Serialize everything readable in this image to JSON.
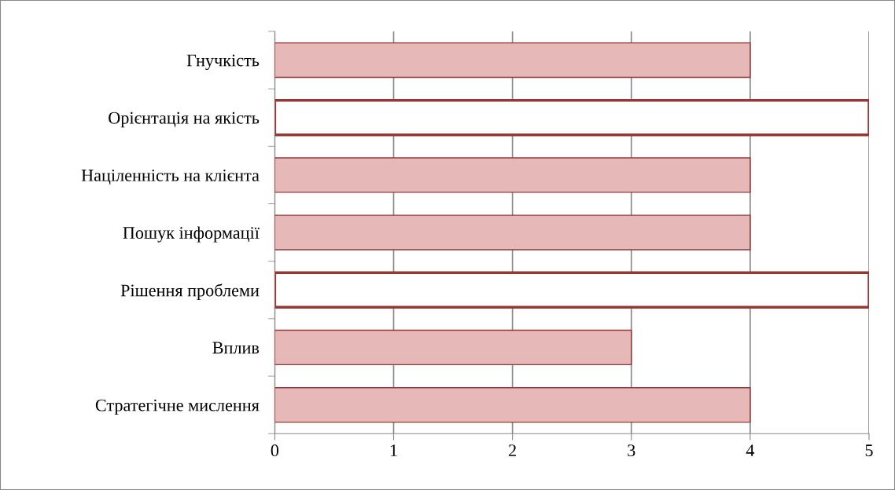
{
  "chart_data": {
    "type": "bar",
    "orientation": "horizontal",
    "categories": [
      "Гнучкість",
      "Орієнтація на якість",
      "Націленність на клієнта",
      "Пошук інформації",
      "Рішення проблеми",
      "Вплив",
      "Стратегічне мислення"
    ],
    "values": [
      4,
      5,
      4,
      4,
      5,
      3,
      4
    ],
    "colors": [
      "#e6b9b8",
      "#ffffff",
      "#e6b9b8",
      "#e6b9b8",
      "#ffffff",
      "#e6b9b8",
      "#e6b9b8"
    ],
    "xlim": [
      0,
      5
    ],
    "xticks": [
      0,
      1,
      2,
      3,
      4,
      5
    ],
    "grid": "x"
  }
}
